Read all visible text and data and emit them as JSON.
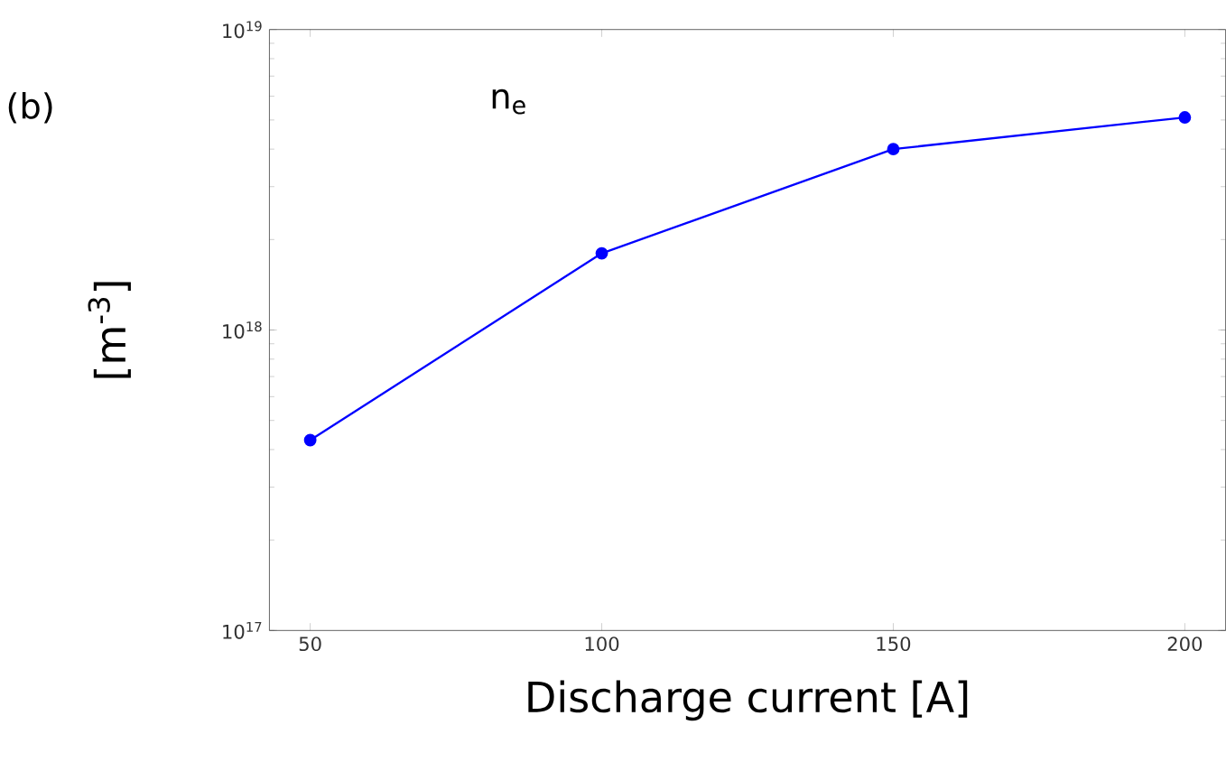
{
  "chart_data": {
    "type": "line",
    "xlabel": "Discharge current [A]",
    "ylabel": "[m$^{-3}$]",
    "annotations": [
      "n$_{e}$",
      "(b)"
    ],
    "x": [
      50,
      100,
      150,
      200
    ],
    "series": [
      {
        "color": "#0000ff",
        "values": [
          4.3e+17,
          1.8e+18,
          4e+18,
          5.1e+18
        ]
      }
    ],
    "xlim": [
      43,
      207
    ],
    "xticks": [
      50,
      100,
      150,
      200
    ],
    "ylim": [
      1e+17,
      1e+19
    ],
    "yticks": [
      {
        "value": 1e+17,
        "label": "10$^{17}$"
      },
      {
        "value": 1e+18,
        "label": "10$^{18}$"
      },
      {
        "value": 1e+19,
        "label": "10$^{19}$"
      }
    ],
    "log": "y",
    "marker": "circle",
    "line_style": "solid"
  }
}
